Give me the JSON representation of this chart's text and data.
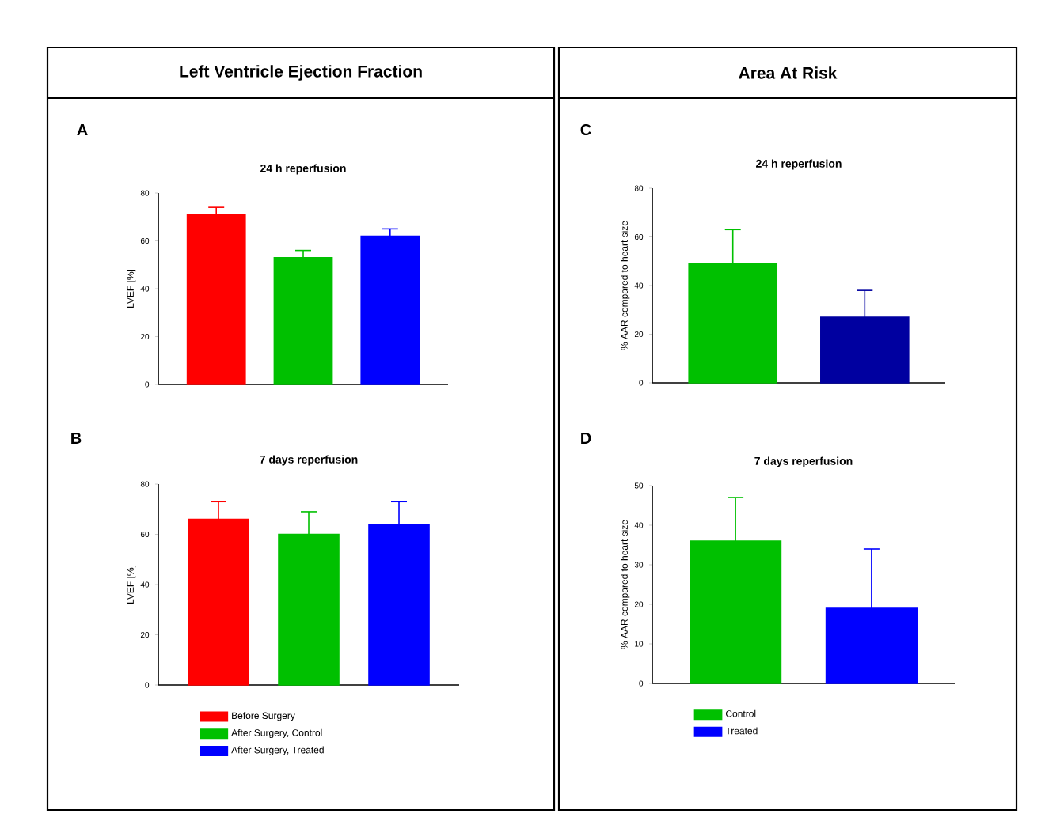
{
  "chart_data": [
    {
      "type": "bar",
      "title": "24 h reperfusion",
      "annotations": [
        "Left Ventricle Ejection Fraction",
        "A"
      ],
      "ylabel": "LVEF [%]",
      "categories": [
        null
      ],
      "series": [
        {
          "color": "#ff0000",
          "values": [
            71
          ],
          "errors": [
            3
          ]
        },
        {
          "color": "#00c000",
          "values": [
            53
          ],
          "errors": [
            3
          ]
        },
        {
          "color": "#0000ff",
          "values": [
            62
          ],
          "errors": [
            3
          ]
        }
      ],
      "ylim": [
        0,
        80
      ],
      "yticks": [
        0,
        20,
        40,
        60,
        80
      ]
    },
    {
      "type": "bar",
      "title": "7 days reperfusion",
      "annotations": [
        "B"
      ],
      "ylabel": "LVEF [%]",
      "categories": [
        null
      ],
      "series": [
        {
          "name": "Before Surgery",
          "color": "#ff0000",
          "values": [
            66
          ],
          "errors": [
            7
          ]
        },
        {
          "name": "After Surgery, Control",
          "color": "#00c000",
          "values": [
            60
          ],
          "errors": [
            9
          ]
        },
        {
          "name": "After Surgery, Treated",
          "color": "#0000ff",
          "values": [
            64
          ],
          "errors": [
            9
          ]
        }
      ],
      "ylim": [
        0,
        80
      ],
      "yticks": [
        0,
        20,
        40,
        60,
        80
      ],
      "legend": "bottom"
    },
    {
      "type": "bar",
      "title": "24 h reperfusion",
      "annotations": [
        "Area At Risk",
        "C"
      ],
      "ylabel": "% AAR compared to heart size",
      "categories": [
        null
      ],
      "series": [
        {
          "color": "#00c000",
          "values": [
            49
          ],
          "errors": [
            14
          ]
        },
        {
          "color": "#0000a0",
          "values": [
            27
          ],
          "errors": [
            11
          ]
        }
      ],
      "ylim": [
        0,
        80
      ],
      "yticks": [
        0,
        20,
        40,
        60,
        80
      ]
    },
    {
      "type": "bar",
      "title": "7 days reperfusion",
      "annotations": [
        "D"
      ],
      "ylabel": "% AAR compared to heart size",
      "categories": [
        null
      ],
      "series": [
        {
          "name": "Control",
          "color": "#00c000",
          "values": [
            36
          ],
          "errors": [
            11
          ]
        },
        {
          "name": "Treated",
          "color": "#0000ff",
          "values": [
            19
          ],
          "errors": [
            15
          ]
        }
      ],
      "ylim": [
        0,
        50
      ],
      "yticks": [
        0,
        10,
        20,
        30,
        40,
        50
      ],
      "legend": "bottom"
    }
  ]
}
